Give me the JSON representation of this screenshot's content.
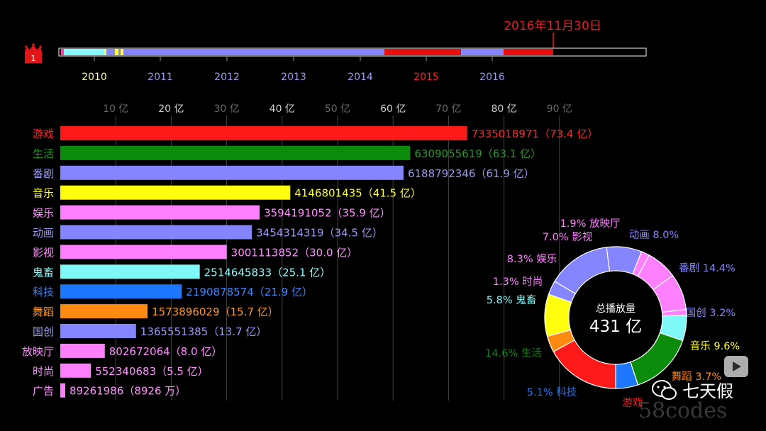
{
  "date_label": "2016年11月30日",
  "rank_badge": "1",
  "timeline": {
    "years": [
      {
        "label": "2010",
        "color": "#ffffaa"
      },
      {
        "label": "2011",
        "color": "#9a9af0"
      },
      {
        "label": "2012",
        "color": "#9a9af0"
      },
      {
        "label": "2013",
        "color": "#9a9af0"
      },
      {
        "label": "2014",
        "color": "#9a9af0"
      },
      {
        "label": "2015",
        "color": "#ff2020"
      },
      {
        "label": "2016",
        "color": "#9a9af0"
      }
    ],
    "segment_colors": [
      "#ff3ea0",
      "#88f8f8",
      "#3aa8d8",
      "#ffff40",
      "#8585ff",
      "#e61010",
      "#8585ff",
      "#e61010"
    ]
  },
  "chart_data": [
    {
      "type": "bar",
      "orientation": "horizontal",
      "xlim": [
        0,
        95
      ],
      "x_ticks": [
        "10 亿",
        "20 亿",
        "30 亿",
        "40 亿",
        "50 亿",
        "60 亿",
        "70 亿",
        "80 亿",
        "90 亿"
      ],
      "categories": [
        "游戏",
        "生活",
        "番剧",
        "音乐",
        "娱乐",
        "动画",
        "影视",
        "鬼畜",
        "科技",
        "舞蹈",
        "国创",
        "放映厅",
        "时尚",
        "广告"
      ],
      "values": [
        7335018971,
        6309055619,
        6188792346,
        4146801435,
        3594191052,
        3454314319,
        3001113852,
        2514645833,
        2190878574,
        1573896029,
        1365551385,
        802672064,
        552340683,
        89261986
      ],
      "value_labels": [
        "7335018971（73.4 亿）",
        "6309055619（63.1 亿）",
        "6188792346（61.9 亿）",
        "4146801435（41.5 亿）",
        "3594191052（35.9 亿）",
        "3454314319（34.5 亿）",
        "3001113852（30.0 亿）",
        "2514645833（25.1 亿）",
        "2190878574（21.9 亿）",
        "1573896029（15.7 亿）",
        "1365551385（13.7 亿）",
        "802672064（8.0 亿）",
        "552340683（5.5 亿）",
        "89261986（8926 万）"
      ],
      "colors": [
        "#ff1a1a",
        "#0a8c0a",
        "#8585ff",
        "#ffff10",
        "#ff80ff",
        "#8585ff",
        "#ff80ff",
        "#7ff8f8",
        "#1e78ff",
        "#ff8a10",
        "#8585ff",
        "#ff80ff",
        "#ff80ff",
        "#ff80ff"
      ],
      "label_colors": [
        "#ff2a2a",
        "#22a022",
        "#9a9af5",
        "#ffff30",
        "#ff90ff",
        "#9a9af5",
        "#ff90ff",
        "#90fafa",
        "#3a88ff",
        "#ff9a20",
        "#9a9af5",
        "#ff90ff",
        "#ff90ff",
        "#ff90ff"
      ],
      "grid": true
    },
    {
      "type": "pie",
      "center_title": "总播放量",
      "center_value": "431 亿",
      "slices": [
        {
          "name": "游戏",
          "percent": 17.0,
          "color": "#ff1a1a",
          "label": "游戏"
        },
        {
          "name": "舞蹈",
          "percent": 3.7,
          "color": "#ff8a10",
          "label": "舞蹈 3.7%"
        },
        {
          "name": "音乐",
          "percent": 9.6,
          "color": "#ffff10",
          "label": "音乐 9.6%"
        },
        {
          "name": "国创",
          "percent": 3.2,
          "color": "#8585ff",
          "label": "国创 3.2%"
        },
        {
          "name": "番剧",
          "percent": 14.4,
          "color": "#8585ff",
          "label": "番剧 14.4%"
        },
        {
          "name": "动画",
          "percent": 8.0,
          "color": "#8585ff",
          "label": "动画 8.0%"
        },
        {
          "name": "放映厅",
          "percent": 1.9,
          "color": "#ff80ff",
          "label": "1.9%  放映厅"
        },
        {
          "name": "影视",
          "percent": 7.0,
          "color": "#ff80ff",
          "label": "7.0%  影视"
        },
        {
          "name": "娱乐",
          "percent": 8.3,
          "color": "#ff80ff",
          "label": "8.3%  娱乐"
        },
        {
          "name": "时尚",
          "percent": 1.3,
          "color": "#ff80ff",
          "label": "1.3%  时尚"
        },
        {
          "name": "鬼畜",
          "percent": 5.8,
          "color": "#7ff8f8",
          "label": "5.8%  鬼畜"
        },
        {
          "name": "生活",
          "percent": 14.6,
          "color": "#0a8c0a",
          "label": "14.6%  生活"
        },
        {
          "name": "科技",
          "percent": 5.1,
          "color": "#1e78ff",
          "label": "5.1%  科技"
        }
      ]
    }
  ],
  "watermark": {
    "text": "七天假",
    "overlay_text": "58codes"
  }
}
